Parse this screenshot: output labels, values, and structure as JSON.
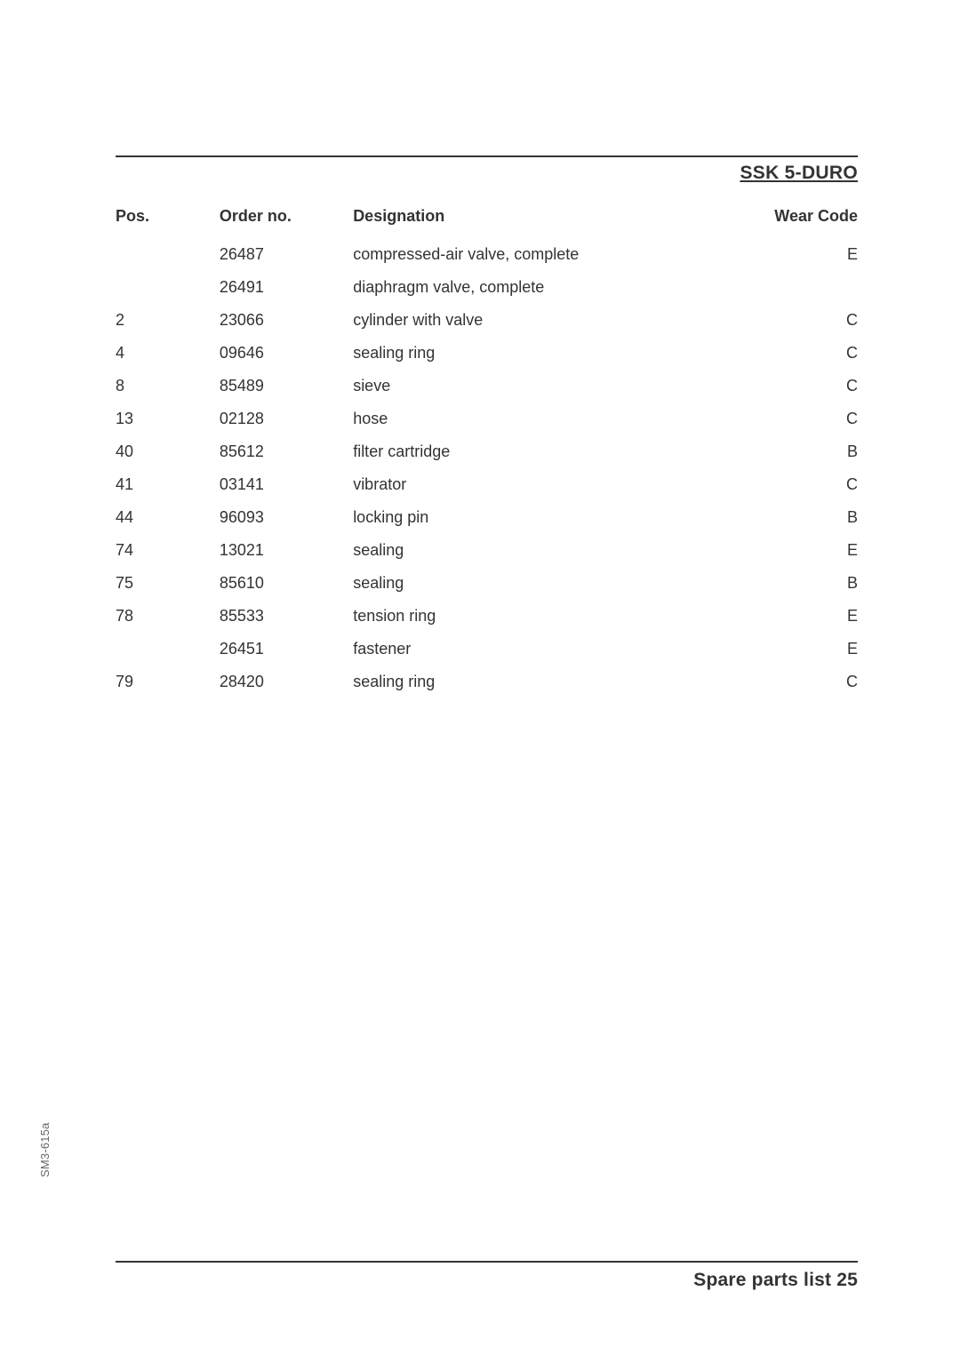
{
  "header": {
    "title": "SSK 5-DURO"
  },
  "sideLabel": "SM3-615a",
  "footer": {
    "text": "Spare parts list 25"
  },
  "table": {
    "columns": {
      "pos": "Pos.",
      "order": "Order no.",
      "designation": "Designation",
      "wear": "Wear Code"
    },
    "rows": [
      {
        "pos": "",
        "order": "26487",
        "designation": "compressed-air valve, complete",
        "wear": "E"
      },
      {
        "pos": "",
        "order": "26491",
        "designation": "diaphragm valve, complete",
        "wear": ""
      },
      {
        "pos": "2",
        "order": "23066",
        "designation": "cylinder with valve",
        "wear": "C"
      },
      {
        "pos": "4",
        "order": "09646",
        "designation": "sealing ring",
        "wear": "C"
      },
      {
        "pos": "8",
        "order": "85489",
        "designation": "sieve",
        "wear": "C"
      },
      {
        "pos": "13",
        "order": "02128",
        "designation": "hose",
        "wear": "C"
      },
      {
        "pos": "40",
        "order": "85612",
        "designation": "filter cartridge",
        "wear": "B"
      },
      {
        "pos": "41",
        "order": "03141",
        "designation": "vibrator",
        "wear": "C"
      },
      {
        "pos": "44",
        "order": "96093",
        "designation": "locking pin",
        "wear": "B"
      },
      {
        "pos": "74",
        "order": "13021",
        "designation": "sealing",
        "wear": "E"
      },
      {
        "pos": "75",
        "order": "85610",
        "designation": "sealing",
        "wear": "B"
      },
      {
        "pos": "78",
        "order": "85533",
        "designation": "tension ring",
        "wear": "E"
      },
      {
        "pos": "",
        "order": "26451",
        "designation": "fastener",
        "wear": "E"
      },
      {
        "pos": "79",
        "order": "28420",
        "designation": "sealing ring",
        "wear": "C"
      }
    ]
  }
}
